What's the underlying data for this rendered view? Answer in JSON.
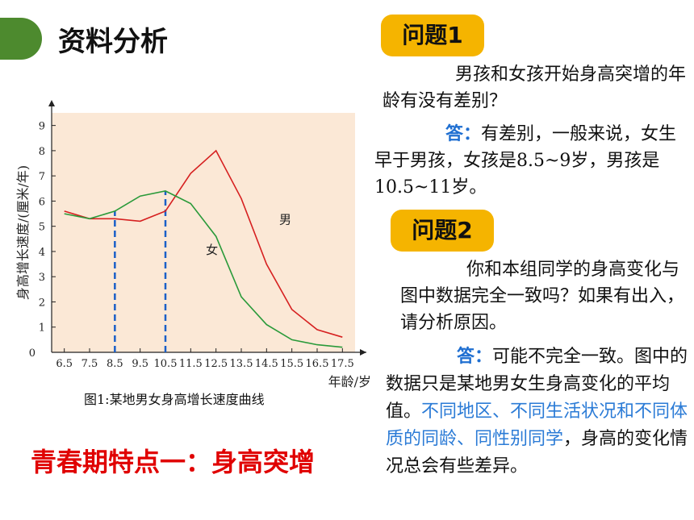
{
  "section_title": "资料分析",
  "q1": {
    "badge": "问题1",
    "question": "男孩和女孩开始身高突增的年龄有没有差别？",
    "answer_label": "答：",
    "answer": "有差别，一般来说，女生早于男孩，女孩是8.5~9岁，男孩是10.5~11岁。"
  },
  "q2": {
    "badge": "问题2",
    "question": "你和本组同学的身高变化与图中数据完全一致吗？如果有出入，请分析原因。",
    "answer_label": "答：",
    "answer_a": "可能不完全一致。图中的数据只是某地男女生身高变化的平均值。",
    "answer_blue": "不同地区、不同生活状况和不同体质的同龄、同性别同学",
    "answer_b": "，身高的变化情况总会有些差异。"
  },
  "caption": "图1:某地男女身高增长速度曲线",
  "headline": "青春期特点一：身高突增",
  "colors": {
    "male": "#d62020",
    "female": "#2a9a3a",
    "bg": "#fbe8d6",
    "marker": "#1a5fc8"
  },
  "chart_data": {
    "type": "line",
    "x": [
      6.5,
      7.5,
      8.5,
      9.5,
      10.5,
      11.5,
      12.5,
      13.5,
      14.5,
      15.5,
      16.5,
      17.5
    ],
    "xtick_labels": [
      "6.5",
      "7.5",
      "8.5",
      "9.5",
      "10.5",
      "11.5",
      "12.5",
      "13.5",
      "14.5",
      "15.5",
      "16.5",
      "17.5"
    ],
    "ytick_labels": [
      "0",
      "1",
      "2",
      "3",
      "4",
      "5",
      "6",
      "7",
      "8",
      "9"
    ],
    "ylim": [
      0,
      9.5
    ],
    "xlabel": "年龄/岁",
    "ylabel": "身高增长速度/(厘米/年)",
    "series": [
      {
        "name": "男",
        "color": "#d62020",
        "values": [
          5.6,
          5.3,
          5.3,
          5.2,
          5.6,
          7.1,
          8.0,
          6.1,
          3.5,
          1.7,
          0.9,
          0.6
        ]
      },
      {
        "name": "女",
        "color": "#2a9a3a",
        "values": [
          5.5,
          5.3,
          5.6,
          6.2,
          6.4,
          5.9,
          4.6,
          2.2,
          1.1,
          0.5,
          0.3,
          0.2
        ]
      }
    ],
    "markers_x": [
      8.5,
      10.5
    ]
  }
}
